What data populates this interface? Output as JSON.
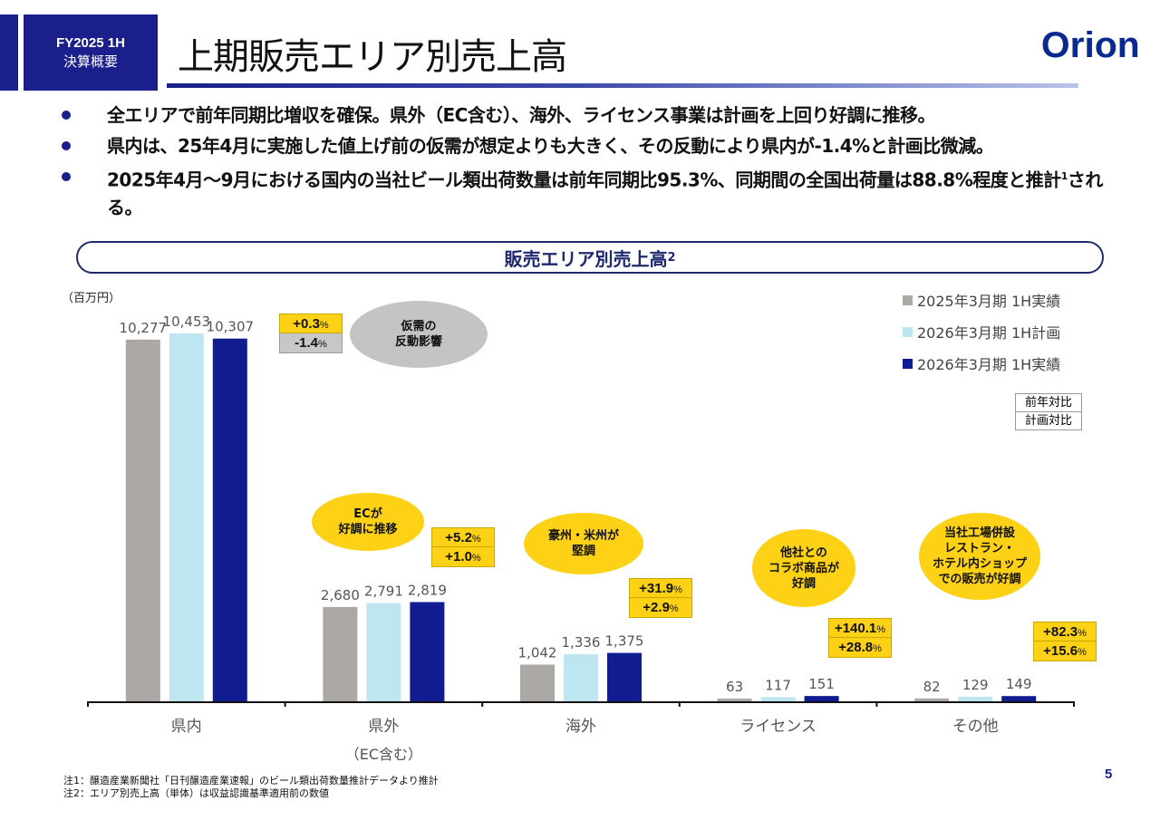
{
  "header": {
    "badge_line1": "FY2025 1H",
    "badge_line2": "決算概要",
    "title": "上期販売エリア別売上高",
    "logo": "Orion",
    "brand_color": "#1a1f8c"
  },
  "bullets": [
    {
      "text": "全エリアで前年同期比増収を確保。県外（EC含む）、海外、ライセンス事業は計画を上回り好調に推移。"
    },
    {
      "text": "県内は、25年4月に実施した値上げ前の仮需が想定よりも大きく、その反動により県内が-1.4%と計画比微減。"
    },
    {
      "text_before_sup": "2025年4月～9月における国内の当社ビール類出荷数量は前年同期比95.3%、同期間の全国出荷量は88.8%程度と推計",
      "sup": "1",
      "text_after_sup": "される。"
    }
  ],
  "section": {
    "title": "販売エリア別売上高",
    "sup": "2"
  },
  "unit_label": "（百万円）",
  "key_box": {
    "yoy_label": "前年対比",
    "plan_label": "計画対比"
  },
  "chart_data": {
    "type": "bar",
    "title": "販売エリア別売上高",
    "ylabel": "百万円",
    "xlabel": "",
    "ylim": [
      0,
      10800
    ],
    "grid": false,
    "legend_position": "top-right",
    "categories": [
      "県内",
      "県外",
      "海外",
      "ライセンス",
      "その他"
    ],
    "category_sublabels": [
      "",
      "（EC含む）",
      "",
      "",
      ""
    ],
    "series": [
      {
        "name": "2025年3月期 1H実績",
        "color": "#aba8a6",
        "values": [
          10277,
          2680,
          1042,
          63,
          82
        ],
        "labels": [
          "10,277",
          "2,680",
          "1,042",
          "63",
          "82"
        ]
      },
      {
        "name": "2026年3月期 1H計画",
        "color": "#bde6f1",
        "values": [
          10453,
          2791,
          1336,
          117,
          129
        ],
        "labels": [
          "10,453",
          "2,791",
          "1,336",
          "117",
          "129"
        ]
      },
      {
        "name": "2026年3月期 1H実績",
        "color": "#101c8f",
        "values": [
          10307,
          2819,
          1375,
          151,
          149
        ],
        "labels": [
          "10,307",
          "2,819",
          "1,375",
          "151",
          "149"
        ]
      }
    ],
    "annotations": [
      {
        "category": "県内",
        "yoy": "+0.3",
        "plan": "-1.4",
        "plan_negative": true,
        "callout": [
          "仮需の",
          "反動影響"
        ],
        "callout_style": "gray"
      },
      {
        "category": "県外",
        "yoy": "+5.2",
        "plan": "+1.0",
        "plan_negative": false,
        "callout": [
          "ECが",
          "好調に推移"
        ],
        "callout_style": "yellow"
      },
      {
        "category": "海外",
        "yoy": "+31.9",
        "plan": "+2.9",
        "plan_negative": false,
        "callout": [
          "豪州・米州が",
          "堅調"
        ],
        "callout_style": "yellow"
      },
      {
        "category": "ライセンス",
        "yoy": "+140.1",
        "plan": "+28.8",
        "plan_negative": false,
        "callout": [
          "他社との",
          "コラボ商品が",
          "好調"
        ],
        "callout_style": "yellow"
      },
      {
        "category": "その他",
        "yoy": "+82.3",
        "plan": "+15.6",
        "plan_negative": false,
        "callout": [
          "当社工場併設",
          "レストラン・",
          "ホテル内ショップ",
          "での販売が好調"
        ],
        "callout_style": "yellow"
      }
    ],
    "percent_unit": "%"
  },
  "footnotes": [
    "注1：醸造産業新聞社「日刊醸造産業速報」のビール類出荷数量推計データより推計",
    "注2：エリア別売上高（単体）は収益認識基準適用前の数値"
  ],
  "page_number": "5"
}
